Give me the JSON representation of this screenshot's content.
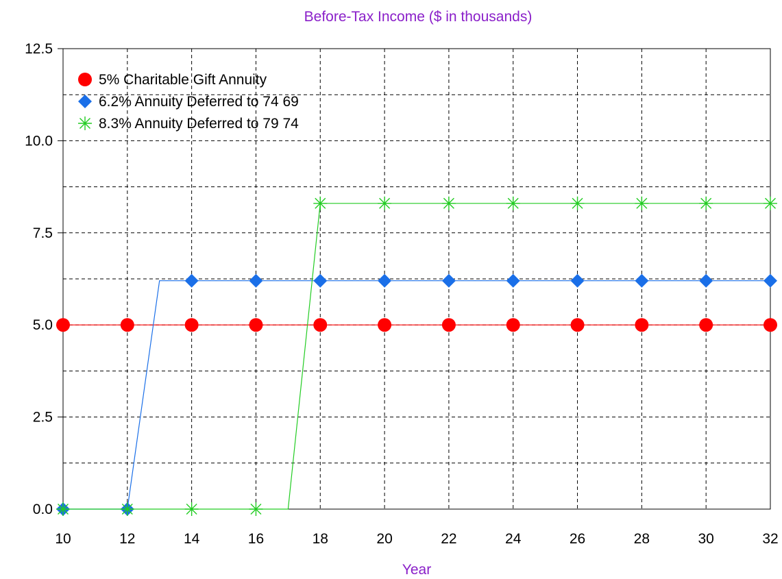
{
  "chart_data": {
    "type": "line",
    "title": "Before-Tax Income ($ in thousands)",
    "xlabel": "Year",
    "ylabel": "",
    "xlim": [
      10,
      32
    ],
    "ylim": [
      0,
      12.5
    ],
    "x_ticks": [
      10,
      12,
      14,
      16,
      18,
      20,
      22,
      24,
      26,
      28,
      30,
      32
    ],
    "y_ticks": [
      0.0,
      2.5,
      5.0,
      7.5,
      10.0,
      12.5
    ],
    "y_tick_labels": [
      "0.0",
      "2.5",
      "5.0",
      "7.5",
      "10.0",
      "12.5"
    ],
    "grid": true,
    "legend_position": "top-left",
    "series": [
      {
        "name": "5% Charitable Gift Annuity",
        "color": "#ff0000",
        "marker": "circle",
        "line": [
          [
            10,
            5
          ],
          [
            32,
            5
          ]
        ],
        "points": [
          [
            10,
            5
          ],
          [
            12,
            5
          ],
          [
            14,
            5
          ],
          [
            16,
            5
          ],
          [
            18,
            5
          ],
          [
            20,
            5
          ],
          [
            22,
            5
          ],
          [
            24,
            5
          ],
          [
            26,
            5
          ],
          [
            28,
            5
          ],
          [
            30,
            5
          ],
          [
            32,
            5
          ]
        ]
      },
      {
        "name": "6.2% Annuity Deferred to 74 69",
        "color": "#1a6fe8",
        "marker": "diamond",
        "line": [
          [
            10,
            0
          ],
          [
            12,
            0
          ],
          [
            13,
            6.2
          ],
          [
            32,
            6.2
          ]
        ],
        "points": [
          [
            10,
            0
          ],
          [
            12,
            0
          ],
          [
            14,
            6.2
          ],
          [
            16,
            6.2
          ],
          [
            18,
            6.2
          ],
          [
            20,
            6.2
          ],
          [
            22,
            6.2
          ],
          [
            24,
            6.2
          ],
          [
            26,
            6.2
          ],
          [
            28,
            6.2
          ],
          [
            30,
            6.2
          ],
          [
            32,
            6.2
          ]
        ]
      },
      {
        "name": "8.3% Annuity Deferred to 79 74",
        "color": "#22cc22",
        "marker": "asterisk",
        "line": [
          [
            10,
            0
          ],
          [
            17,
            0
          ],
          [
            18,
            8.3
          ],
          [
            32,
            8.3
          ]
        ],
        "points": [
          [
            10,
            0
          ],
          [
            12,
            0
          ],
          [
            14,
            0
          ],
          [
            16,
            0
          ],
          [
            18,
            8.3
          ],
          [
            20,
            8.3
          ],
          [
            22,
            8.3
          ],
          [
            24,
            8.3
          ],
          [
            26,
            8.3
          ],
          [
            28,
            8.3
          ],
          [
            30,
            8.3
          ],
          [
            32,
            8.3
          ]
        ]
      }
    ]
  }
}
